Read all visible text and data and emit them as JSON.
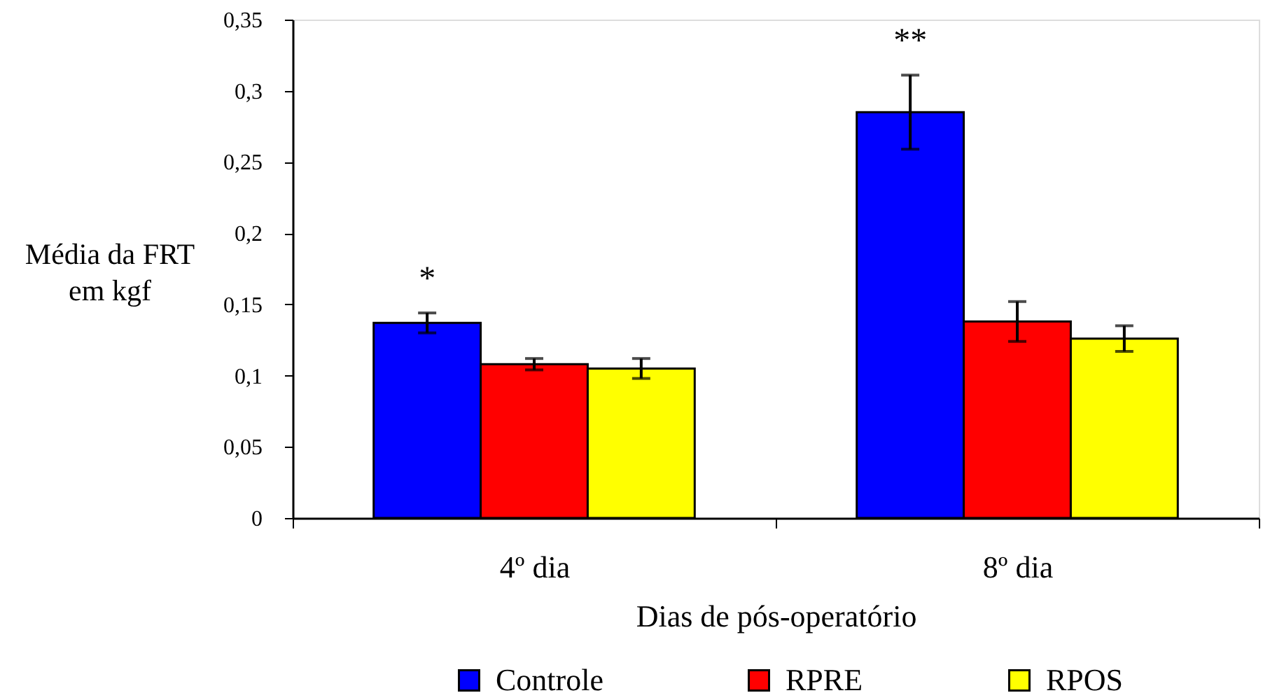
{
  "chart_data": {
    "type": "bar",
    "categories": [
      "4º dia",
      "8º dia"
    ],
    "series": [
      {
        "name": "Controle",
        "color": "#0000ff",
        "values": [
          0.137,
          0.285
        ],
        "errors": [
          0.007,
          0.026
        ]
      },
      {
        "name": "RPRE",
        "color": "#ff0000",
        "values": [
          0.108,
          0.138
        ],
        "errors": [
          0.004,
          0.014
        ]
      },
      {
        "name": "RPOS",
        "color": "#ffff00",
        "values": [
          0.105,
          0.126
        ],
        "errors": [
          0.007,
          0.009
        ]
      }
    ],
    "xlabel": "Dias de pós-operatório",
    "ylabel": "Média da FRT\nem kgf",
    "ylim": [
      0,
      0.35
    ],
    "yticks": [
      0,
      {
        "value": 0.05,
        "label": "0,05"
      },
      {
        "value": 0.1,
        "label": "0,1"
      },
      {
        "value": 0.15,
        "label": "0,15"
      },
      {
        "value": 0.2,
        "label": "0,2"
      },
      {
        "value": 0.25,
        "label": "0,25"
      },
      {
        "value": 0.3,
        "label": "0,3"
      },
      {
        "value": 0.35,
        "label": "0,35"
      }
    ],
    "annotations": [
      "*",
      "**"
    ],
    "legend": "bottom"
  }
}
